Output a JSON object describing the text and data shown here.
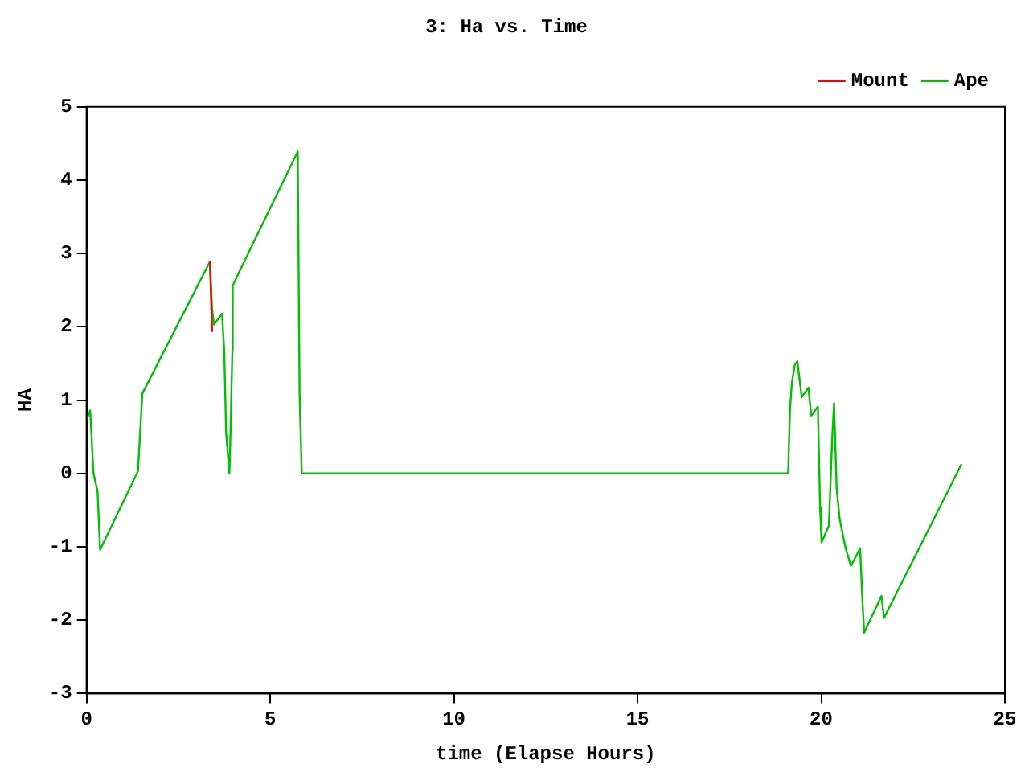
{
  "chart_data": {
    "type": "line",
    "title": "3: Ha vs. Time",
    "xlabel": "time (Elapse Hours)",
    "ylabel": "HA",
    "xlim": [
      0,
      25
    ],
    "xticks": [
      0,
      5,
      10,
      15,
      20,
      25
    ],
    "ylim": [
      -3,
      5
    ],
    "yticks": [
      -3,
      -2,
      -1,
      0,
      1,
      2,
      3,
      4,
      5
    ],
    "grid": false,
    "legend": "top right",
    "marker": "none",
    "line_style": "solid",
    "series": [
      {
        "name": "Mount",
        "color": "#ff0000",
        "x": [
          3.36,
          3.42
        ],
        "values": [
          2.89,
          1.93
        ]
      },
      {
        "name": "Ape",
        "color": "#00c000",
        "x": [
          0,
          0.1,
          0.19,
          0.3,
          0.37,
          1.4,
          1.52,
          3.36,
          3.42,
          3.47,
          3.69,
          3.75,
          3.8,
          3.89,
          3.92,
          3.97,
          3.98,
          4.14,
          5.75,
          5.8,
          5.86,
          19.1,
          19.15,
          19.2,
          19.28,
          19.35,
          19.47,
          19.65,
          19.73,
          19.91,
          19.97,
          20.01,
          20.21,
          20.3,
          20.35,
          20.42,
          20.5,
          20.66,
          20.81,
          21.06,
          21.12,
          21.17,
          21.64,
          21.71,
          23.82
        ],
        "values": [
          0.73,
          0.86,
          0,
          -0.24,
          -1.04,
          0.03,
          1.09,
          2.89,
          2.23,
          2.03,
          2.18,
          1.67,
          0.56,
          0,
          0.56,
          1.67,
          2.56,
          2.73,
          4.39,
          1.09,
          0,
          0,
          0.86,
          1.23,
          1.48,
          1.53,
          1.04,
          1.17,
          0.79,
          0.91,
          -0.47,
          -0.94,
          -0.71,
          0.49,
          0.96,
          -0.2,
          -0.61,
          -1.01,
          -1.26,
          -1.02,
          -1.71,
          -2.17,
          -1.67,
          -1.97,
          0.13
        ]
      }
    ]
  }
}
